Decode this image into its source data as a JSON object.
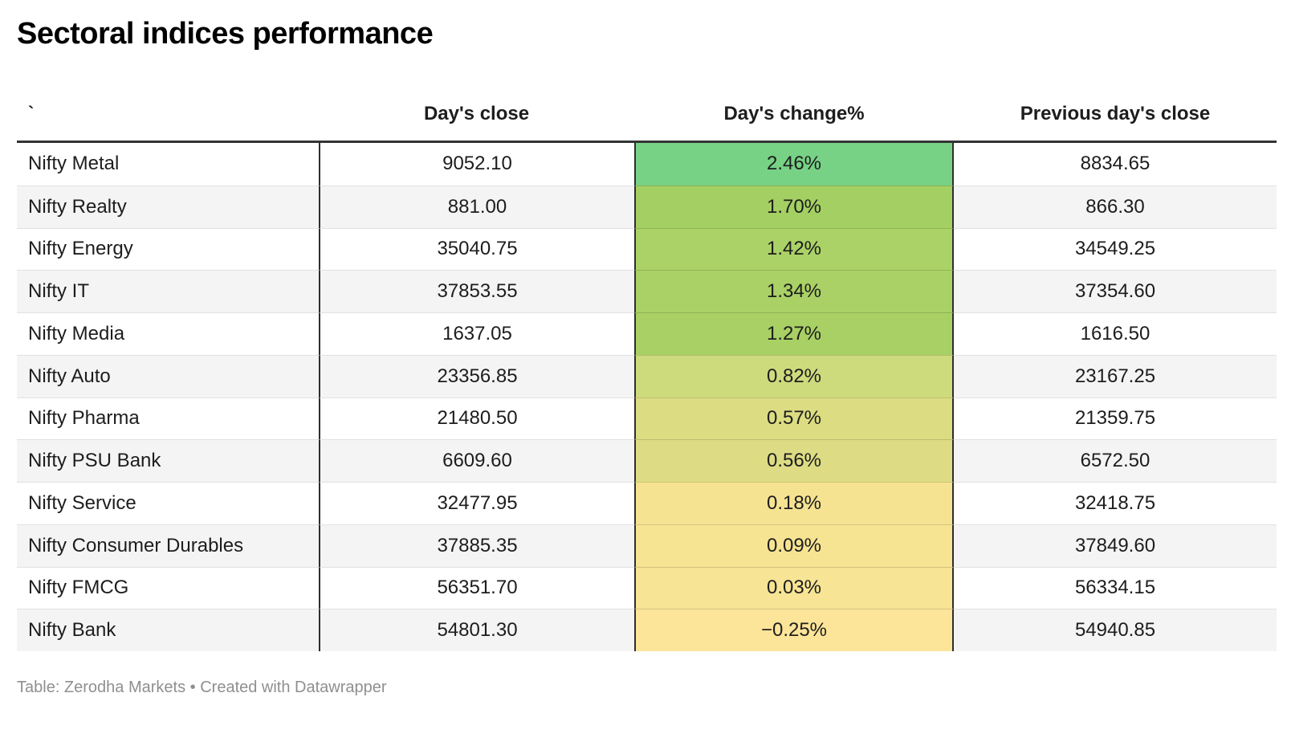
{
  "title": "Sectoral indices performance",
  "table": {
    "col1_header": "`",
    "columns": [
      "Day's close",
      "Day's change%",
      "Previous day's close"
    ],
    "rows": [
      {
        "name": "Nifty Metal",
        "close": "9052.10",
        "change": "2.46%",
        "change_color": "#77d286",
        "prev": "8834.65"
      },
      {
        "name": "Nifty Realty",
        "close": "881.00",
        "change": "1.70%",
        "change_color": "#a4cf63",
        "prev": "866.30"
      },
      {
        "name": "Nifty Energy",
        "close": "35040.75",
        "change": "1.42%",
        "change_color": "#abd267",
        "prev": "34549.25"
      },
      {
        "name": "Nifty IT",
        "close": "37853.55",
        "change": "1.34%",
        "change_color": "#aad166",
        "prev": "37354.60"
      },
      {
        "name": "Nifty Media",
        "close": "1637.05",
        "change": "1.27%",
        "change_color": "#a8d065",
        "prev": "1616.50"
      },
      {
        "name": "Nifty Auto",
        "close": "23356.85",
        "change": "0.82%",
        "change_color": "#cedb7d",
        "prev": "23167.25"
      },
      {
        "name": "Nifty Pharma",
        "close": "21480.50",
        "change": "0.57%",
        "change_color": "#dcdc83",
        "prev": "21359.75"
      },
      {
        "name": "Nifty PSU Bank",
        "close": "6609.60",
        "change": "0.56%",
        "change_color": "#dddc84",
        "prev": "6572.50"
      },
      {
        "name": "Nifty Service",
        "close": "32477.95",
        "change": "0.18%",
        "change_color": "#f5e392",
        "prev": "32418.75"
      },
      {
        "name": "Nifty Consumer Durables",
        "close": "37885.35",
        "change": "0.09%",
        "change_color": "#f6e493",
        "prev": "37849.60"
      },
      {
        "name": "Nifty FMCG",
        "close": "56351.70",
        "change": "0.03%",
        "change_color": "#f7e494",
        "prev": "56334.15"
      },
      {
        "name": "Nifty Bank",
        "close": "54801.30",
        "change": "−0.25%",
        "change_color": "#fce499",
        "prev": "54940.85"
      }
    ]
  },
  "footer": {
    "text": "Table: Zerodha Markets • Created with Datawrapper"
  },
  "chart_data": {
    "type": "table",
    "title": "Sectoral indices performance",
    "columns": [
      "",
      "Day's close",
      "Day's change%",
      "Previous day's close"
    ],
    "rows": [
      [
        "Nifty Metal",
        9052.1,
        "2.46%",
        8834.65
      ],
      [
        "Nifty Realty",
        881.0,
        "1.70%",
        866.3
      ],
      [
        "Nifty Energy",
        35040.75,
        "1.42%",
        34549.25
      ],
      [
        "Nifty IT",
        37853.55,
        "1.34%",
        37354.6
      ],
      [
        "Nifty Media",
        1637.05,
        "1.27%",
        1616.5
      ],
      [
        "Nifty Auto",
        23356.85,
        "0.82%",
        23167.25
      ],
      [
        "Nifty Pharma",
        21480.5,
        "0.57%",
        21359.75
      ],
      [
        "Nifty PSU Bank",
        6609.6,
        "0.56%",
        6572.5
      ],
      [
        "Nifty Service",
        32477.95,
        "0.18%",
        32418.75
      ],
      [
        "Nifty Consumer Durables",
        37885.35,
        "0.09%",
        37849.6
      ],
      [
        "Nifty FMCG",
        56351.7,
        "0.03%",
        56334.15
      ],
      [
        "Nifty Bank",
        54801.3,
        "−0.25%",
        54940.85
      ]
    ],
    "heatmap_column": "Day's change%",
    "heatmap_colors": [
      "#77d286",
      "#a4cf63",
      "#abd267",
      "#aad166",
      "#a8d065",
      "#cedb7d",
      "#dcdc83",
      "#dddc84",
      "#f5e392",
      "#f6e493",
      "#f7e494",
      "#fce499"
    ],
    "layout_hints": {
      "row_striping": "#f4f4f4",
      "header_rule_color": "#333333",
      "column_rule_color": "#2e2e2e",
      "sorted_by": "Day's change%",
      "sort_order": "descending"
    }
  }
}
